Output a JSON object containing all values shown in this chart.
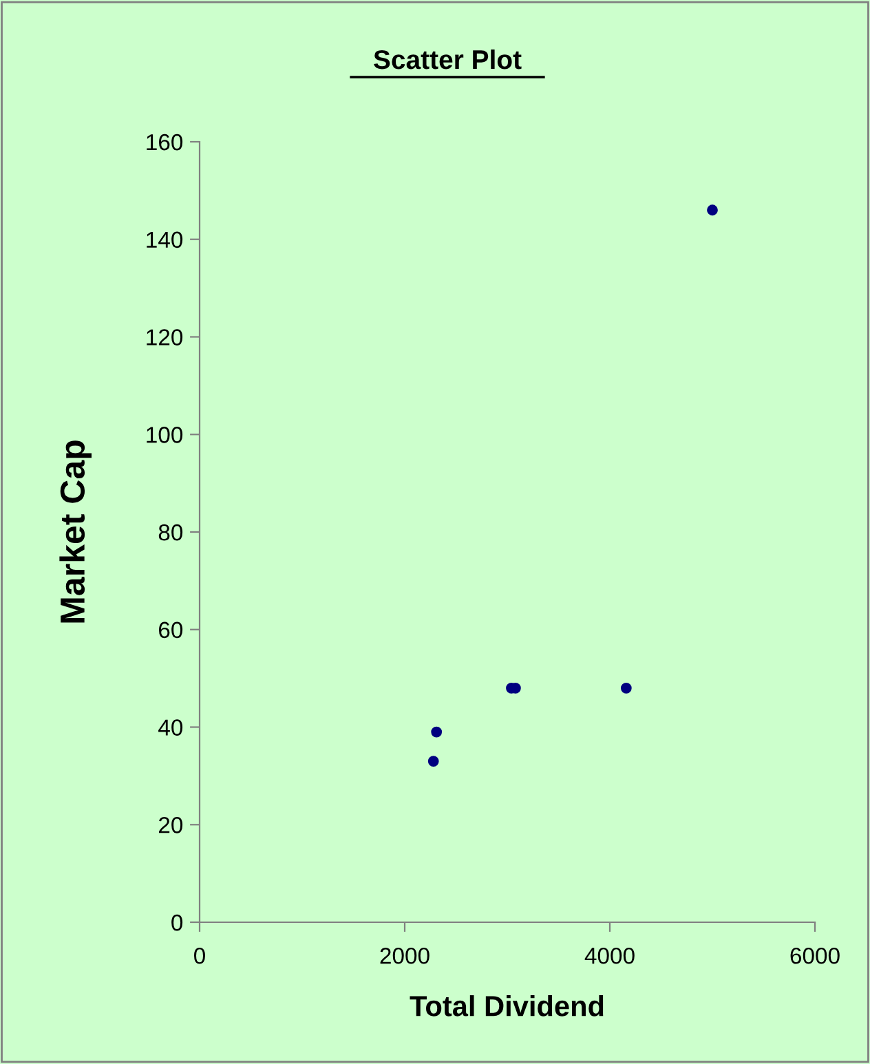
{
  "chart_data": {
    "type": "scatter",
    "title": "Scatter Plot",
    "xlabel": "Total Dividend",
    "ylabel": "Market Cap",
    "x": [
      2280,
      2310,
      3040,
      3080,
      4160,
      5000
    ],
    "series": [
      {
        "color": "#000080",
        "values": [
          33,
          39,
          48,
          48,
          48,
          146
        ]
      }
    ],
    "xlim": [
      0,
      6000
    ],
    "xticks": [
      0,
      2000,
      4000,
      6000
    ],
    "ylim": [
      0,
      160
    ],
    "yticks": [
      0,
      20,
      40,
      60,
      80,
      100,
      120,
      140,
      160
    ],
    "marker": "circle",
    "grid": false,
    "legend": false
  }
}
